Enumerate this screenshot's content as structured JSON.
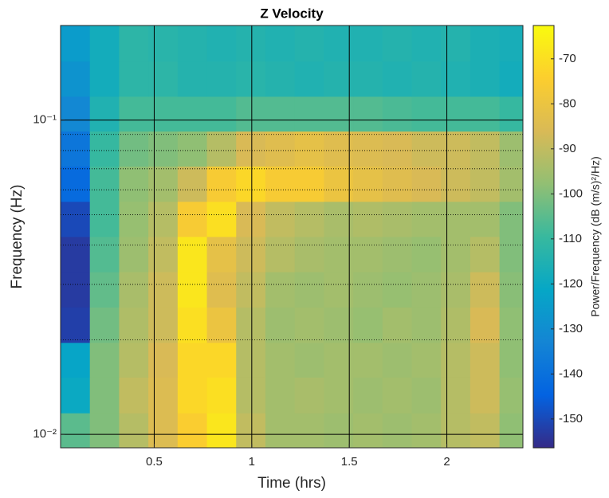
{
  "chart_data": {
    "type": "spectrogram",
    "title": "Z Velocity",
    "x_label": "Time (hrs)",
    "y_label": "Frequency (Hz)",
    "colorbar_label": "Power/Frequency (dB (m/s)²/Hz)",
    "xlim": [
      0.02,
      2.39
    ],
    "xticks": [
      0.5,
      1,
      1.5,
      2
    ],
    "ylim": [
      0.00906,
      0.2
    ],
    "y_scale": "log",
    "yticks": [
      {
        "value": 0.01,
        "label": "10⁻²"
      },
      {
        "value": 0.1,
        "label": "10⁻¹"
      }
    ],
    "y_minor_ticks": [
      0.02,
      0.03,
      0.04,
      0.05,
      0.06,
      0.07,
      0.08,
      0.09
    ],
    "grid": true,
    "minor_grid": true,
    "clim": [
      -156.4,
      -62.6
    ],
    "cticks": [
      -150,
      -140,
      -130,
      -120,
      -110,
      -100,
      -90,
      -80,
      -70
    ],
    "colormap": [
      "#352a87",
      "#0363e1",
      "#1485d4",
      "#06a7c6",
      "#38b99e",
      "#92bf73",
      "#d9ba56",
      "#fcce2e",
      "#f9fb0e"
    ],
    "time_bins": [
      0.02,
      0.17,
      0.32,
      0.47,
      0.62,
      0.77,
      0.92,
      1.07,
      1.22,
      1.37,
      1.52,
      1.67,
      1.82,
      1.97,
      2.12,
      2.27,
      2.39
    ],
    "freq_bins": [
      0.00906,
      0.0117,
      0.0152,
      0.0196,
      0.0254,
      0.0329,
      0.0426,
      0.0551,
      0.0713,
      0.0922,
      0.119,
      0.154,
      0.2
    ],
    "power": [
      [
        -105,
        -100,
        -92,
        -85,
        -75,
        -68,
        -90,
        -95,
        -95,
        -96,
        -95,
        -96,
        -95,
        -92,
        -90,
        -98
      ],
      [
        -120,
        -100,
        -90,
        -85,
        -72,
        -70,
        -92,
        -95,
        -94,
        -95,
        -96,
        -95,
        -96,
        -92,
        -88,
        -97
      ],
      [
        -122,
        -100,
        -92,
        -86,
        -72,
        -72,
        -92,
        -95,
        -96,
        -95,
        -95,
        -96,
        -95,
        -92,
        -88,
        -98
      ],
      [
        -152,
        -102,
        -93,
        -88,
        -70,
        -80,
        -92,
        -96,
        -95,
        -96,
        -97,
        -95,
        -96,
        -93,
        -86,
        -98
      ],
      [
        -153,
        -104,
        -94,
        -88,
        -68,
        -84,
        -90,
        -95,
        -96,
        -95,
        -96,
        -97,
        -96,
        -94,
        -88,
        -99
      ],
      [
        -153,
        -106,
        -96,
        -90,
        -68,
        -82,
        -88,
        -92,
        -94,
        -95,
        -95,
        -96,
        -97,
        -95,
        -92,
        -100
      ],
      [
        -150,
        -108,
        -97,
        -92,
        -76,
        -70,
        -86,
        -90,
        -92,
        -94,
        -93,
        -94,
        -95,
        -95,
        -95,
        -100
      ],
      [
        -142,
        -108,
        -98,
        -95,
        -88,
        -76,
        -72,
        -76,
        -76,
        -80,
        -82,
        -84,
        -86,
        -88,
        -90,
        -95
      ],
      [
        -138,
        -110,
        -102,
        -100,
        -98,
        -92,
        -86,
        -84,
        -82,
        -84,
        -85,
        -86,
        -88,
        -88,
        -90,
        -96
      ],
      [
        -132,
        -115,
        -108,
        -108,
        -108,
        -108,
        -106,
        -106,
        -106,
        -106,
        -106,
        -107,
        -108,
        -108,
        -108,
        -110
      ],
      [
        -128,
        -118,
        -112,
        -112,
        -114,
        -114,
        -113,
        -114,
        -115,
        -114,
        -114,
        -115,
        -114,
        -115,
        -116,
        -118
      ],
      [
        -125,
        -118,
        -112,
        -113,
        -114,
        -115,
        -114,
        -115,
        -114,
        -115,
        -115,
        -114,
        -115,
        -114,
        -116,
        -117
      ]
    ]
  }
}
